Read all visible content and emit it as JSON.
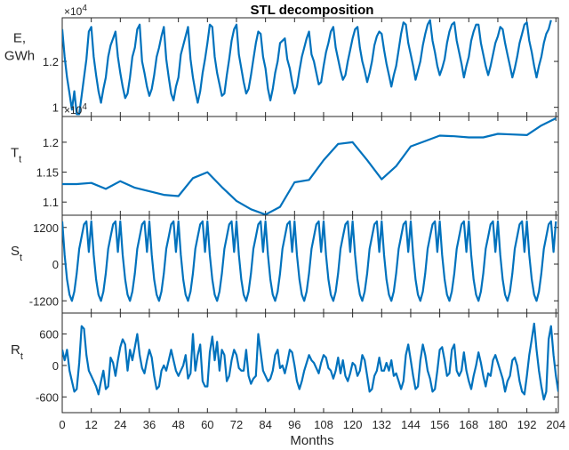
{
  "chart_data": {
    "type": "line",
    "title": "STL decomposition",
    "xlabel": "Months",
    "xlim": [
      0,
      205
    ],
    "xticks": [
      "0",
      "12",
      "24",
      "36",
      "48",
      "60",
      "72",
      "84",
      "96",
      "108",
      "120",
      "132",
      "144",
      "156",
      "168",
      "180",
      "192",
      "204"
    ],
    "line_color": "#0072BD",
    "panels": [
      {
        "id": "E",
        "ylabel_main": "E,",
        "ylabel_line2": "GWh",
        "exponent_base": "×10",
        "exponent_power": "4",
        "ylim": [
          9600,
          13900
        ],
        "yticks": [
          {
            "value": 12000,
            "label": "1.2"
          },
          {
            "value": 10000,
            "label": "1"
          }
        ],
        "series": [
          {
            "name": "E",
            "x_step": 1,
            "values": [
              13400,
              12200,
              11300,
              10600,
              9900,
              10700,
              9700,
              9700,
              10500,
              11300,
              12100,
              13300,
              13500,
              12200,
              11400,
              10700,
              10200,
              10800,
              11300,
              12200,
              12700,
              13000,
              13300,
              12200,
              11500,
              10900,
              10400,
              10600,
              11300,
              12200,
              12600,
              13400,
              13600,
              12000,
              11500,
              10900,
              10500,
              10800,
              11400,
              12200,
              12600,
              13100,
              13500,
              12100,
              11300,
              10600,
              10300,
              10900,
              11300,
              12300,
              12700,
              13100,
              13500,
              12100,
              11300,
              10700,
              10200,
              10700,
              11500,
              12100,
              12800,
              13600,
              13500,
              12200,
              11500,
              11000,
              10500,
              10600,
              11400,
              12100,
              12900,
              13400,
              13600,
              12300,
              11700,
              11100,
              10600,
              10800,
              11400,
              12100,
              12800,
              13300,
              13200,
              12200,
              11700,
              10800,
              10300,
              10800,
              11500,
              12000,
              12800,
              12900,
              13000,
              12100,
              11700,
              11100,
              10600,
              10900,
              11600,
              12200,
              12600,
              13000,
              13300,
              12300,
              12000,
              11500,
              11000,
              11100,
              11800,
              12400,
              12800,
              13300,
              13500,
              12600,
              12100,
              11600,
              11200,
              11400,
              12000,
              12500,
              13000,
              13400,
              13500,
              12600,
              12000,
              11600,
              11100,
              11500,
              12000,
              12700,
              13100,
              13300,
              13200,
              12500,
              11900,
              11400,
              10900,
              11400,
              11800,
              12500,
              13200,
              13700,
              13600,
              12800,
              12300,
              11800,
              11200,
              11600,
              12000,
              12700,
              13200,
              13600,
              13800,
              12900,
              12400,
              11800,
              11400,
              11700,
              12100,
              12800,
              13300,
              13600,
              13700,
              12900,
              12400,
              11900,
              11300,
              11800,
              12200,
              12900,
              13300,
              13600,
              13600,
              12800,
              12300,
              11800,
              11400,
              11800,
              12300,
              12800,
              13100,
              13500,
              13400,
              12800,
              12300,
              11800,
              11300,
              11700,
              12200,
              12800,
              13200,
              13600,
              13700,
              12900,
              12400,
              11800,
              11300,
              11800,
              12200,
              12800,
              13200,
              13400,
              13800
            ]
          }
        ]
      },
      {
        "id": "T",
        "ylabel_main": "T",
        "ylabel_sub": "t",
        "exponent_base": "×10",
        "exponent_power": "4",
        "ylim": [
          10780,
          12430
        ],
        "yticks": [
          {
            "value": 12000,
            "label": "1.2"
          },
          {
            "value": 11500,
            "label": "1.15"
          },
          {
            "value": 11000,
            "label": "1.1"
          }
        ],
        "series": [
          {
            "name": "T",
            "x": [
              0,
              6,
              12,
              18,
              24,
              30,
              36,
              42,
              48,
              54,
              60,
              66,
              72,
              78,
              84,
              90,
              96,
              102,
              108,
              114,
              120,
              126,
              132,
              138,
              144,
              150,
              156,
              162,
              168,
              174,
              180,
              186,
              192,
              198,
              204
            ],
            "values": [
              11300,
              11300,
              11320,
              11220,
              11350,
              11240,
              11180,
              11120,
              11100,
              11400,
              11500,
              11250,
              11020,
              10880,
              10790,
              10920,
              11330,
              11370,
              11700,
              11970,
              12000,
              11700,
              11380,
              11600,
              11930,
              12020,
              12110,
              12100,
              12080,
              12080,
              12140,
              12130,
              12120,
              12280,
              12400
            ]
          }
        ]
      },
      {
        "id": "S",
        "ylabel_main": "S",
        "ylabel_sub": "t",
        "ylim": [
          -1600,
          1600
        ],
        "yticks": [
          {
            "value": 1200,
            "label": "1200"
          },
          {
            "value": 0,
            "label": "0"
          },
          {
            "value": -1200,
            "label": "-1200"
          }
        ],
        "series": [
          {
            "name": "S",
            "x_step": 1,
            "period_pattern": [
              1400,
              300,
              -500,
              -1000,
              -1200,
              -900,
              -300,
              500,
              900,
              1300,
              1400,
              400
            ]
          }
        ]
      },
      {
        "id": "R",
        "ylabel_main": "R",
        "ylabel_sub": "t",
        "ylim": [
          -900,
          1000
        ],
        "yticks": [
          {
            "value": 600,
            "label": "600"
          },
          {
            "value": 0,
            "label": "0"
          },
          {
            "value": -600,
            "label": "-600"
          }
        ],
        "series": [
          {
            "name": "R",
            "x_step": 1,
            "values": [
              300,
              100,
              300,
              -100,
              -300,
              -500,
              -450,
              50,
              750,
              700,
              200,
              -100,
              -200,
              -300,
              -400,
              -550,
              -300,
              -100,
              -450,
              -400,
              150,
              50,
              -200,
              100,
              350,
              500,
              400,
              -100,
              300,
              100,
              350,
              600,
              200,
              -50,
              -150,
              100,
              300,
              150,
              -200,
              -450,
              -400,
              -100,
              0,
              -100,
              100,
              300,
              100,
              -100,
              -200,
              -100,
              0,
              200,
              -250,
              -150,
              600,
              -100,
              200,
              400,
              -300,
              -400,
              -400,
              250,
              550,
              100,
              450,
              -100,
              300,
              200,
              -300,
              -200,
              100,
              300,
              200,
              -50,
              -100,
              -100,
              300,
              -200,
              -350,
              -250,
              -200,
              600,
              250,
              -100,
              -200,
              -300,
              -250,
              -100,
              200,
              300,
              -50,
              0,
              -150,
              50,
              300,
              250,
              0,
              -300,
              -450,
              -300,
              -100,
              50,
              200,
              100,
              50,
              -50,
              -150,
              50,
              200,
              150,
              -50,
              -100,
              -250,
              -100,
              150,
              -150,
              100,
              -200,
              -300,
              -150,
              50,
              0,
              -200,
              -100,
              200,
              100,
              -200,
              -500,
              -450,
              -200,
              -100,
              150,
              -100,
              -100,
              50,
              -100,
              100,
              -200,
              -150,
              -300,
              -450,
              -300,
              200,
              400,
              100,
              -200,
              -450,
              -400,
              100,
              400,
              200,
              -100,
              -250,
              -500,
              -450,
              -100,
              300,
              350,
              100,
              -200,
              -150,
              300,
              400,
              -100,
              -200,
              -100,
              250,
              -100,
              -300,
              -450,
              -200,
              0,
              250,
              50,
              -200,
              -400,
              -150,
              -200,
              100,
              200,
              50,
              -100,
              -250,
              -500,
              -300,
              -200,
              100,
              150,
              0,
              -300,
              -500,
              -550,
              -200,
              200,
              500,
              800,
              300,
              -100,
              -400,
              -650,
              -500,
              500,
              750,
              200,
              -200,
              -500
            ]
          }
        ]
      }
    ]
  }
}
